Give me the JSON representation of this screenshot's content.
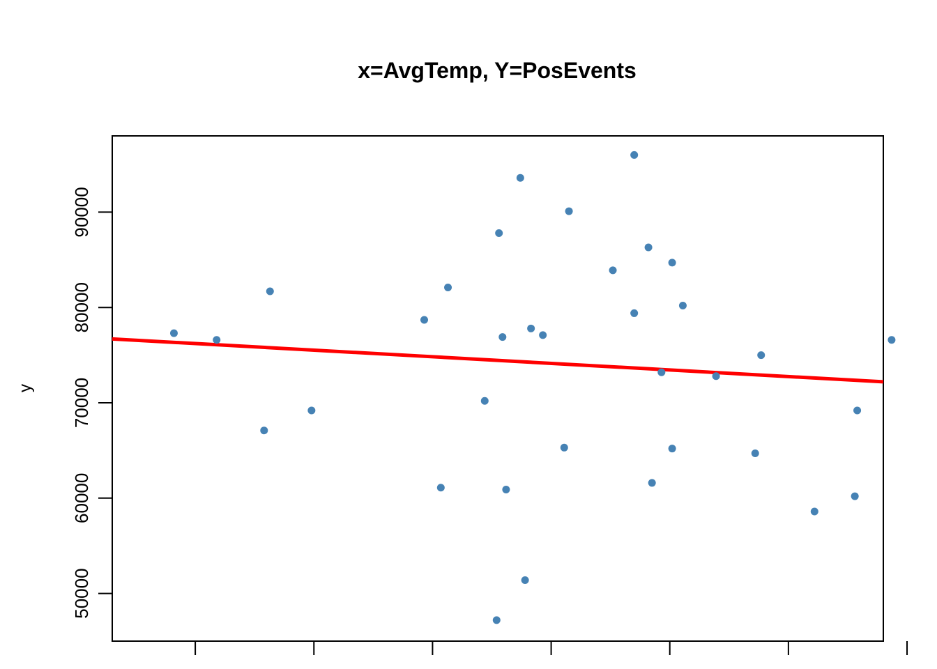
{
  "chart_data": {
    "type": "scatter",
    "title": "x=AvgTemp, Y=PosEvents",
    "xlabel": "",
    "ylabel": "y",
    "xlim": [
      -1.4,
      11.6
    ],
    "ylim": [
      45000,
      98000
    ],
    "xticks": [
      0,
      2,
      4,
      6,
      8,
      10,
      12
    ],
    "xtick_labels": [],
    "yticks": [
      50000,
      60000,
      70000,
      80000,
      90000
    ],
    "ytick_labels": [
      "50000",
      "60000",
      "70000",
      "80000",
      "90000"
    ],
    "grid": false,
    "point_color": "#4682b4",
    "line_color": "#ff0000",
    "x": [
      -0.36,
      0.36,
      1.16,
      1.26,
      1.96,
      3.86,
      4.14,
      4.26,
      4.88,
      5.08,
      5.12,
      5.18,
      5.24,
      5.48,
      5.56,
      5.66,
      5.86,
      6.22,
      6.3,
      7.04,
      7.4,
      7.4,
      7.64,
      7.7,
      7.86,
      8.04,
      8.04,
      8.22,
      8.78,
      9.44,
      9.54,
      10.44,
      11.12,
      11.16,
      11.74
    ],
    "y": [
      77300,
      76600,
      67100,
      81700,
      69200,
      78700,
      61100,
      82100,
      70200,
      47200,
      87800,
      76900,
      60900,
      93600,
      51400,
      77800,
      77100,
      65300,
      90100,
      83900,
      96000,
      79400,
      86300,
      61600,
      73200,
      84700,
      65200,
      80200,
      72800,
      64700,
      75000,
      58600,
      60200,
      69200,
      76600
    ],
    "regression_line": {
      "x": [
        -1.4,
        11.6
      ],
      "y": [
        76700,
        72200
      ]
    }
  }
}
